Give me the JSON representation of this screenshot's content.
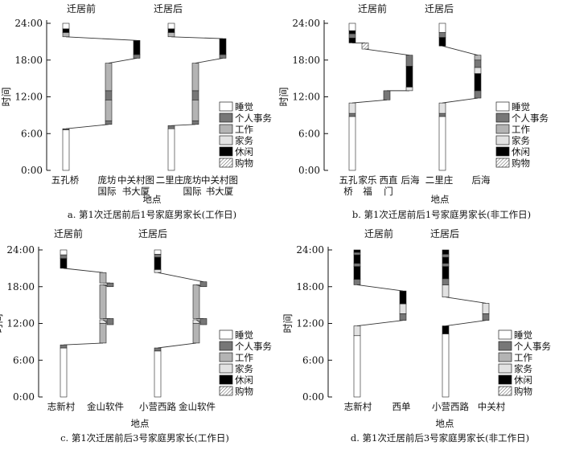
{
  "activity_colors": {
    "sleep": "#ffffff",
    "personal": "#777777",
    "work": "#b4b4b4",
    "housework": "#e2e2e2",
    "leisure": "#000000",
    "shopping": "hatch"
  },
  "chart_data": [
    {
      "type": "bar",
      "caption": "a. 第1次迁居前后1号家庭男家长(工作日)",
      "xlabel": "地点",
      "ylabel": "时间",
      "yticks": [
        "0:00",
        "6:00",
        "12:00",
        "18:00",
        "24:00"
      ],
      "ylim": [
        0,
        24
      ],
      "period_labels": [
        "迁居前",
        "迁居后"
      ],
      "legend": [
        "睡觉",
        "个人事务",
        "工作",
        "家务",
        "休闲",
        "购物"
      ],
      "categories": [
        [
          "五孔桥"
        ],
        [
          "庞坊",
          "国际"
        ],
        [
          "中关村图",
          "书大厦"
        ],
        [
          "二里庄"
        ],
        [
          "庞坊",
          "国际"
        ],
        [
          "中关村图",
          "书大厦"
        ]
      ],
      "periods": [
        {
          "name": "迁居前",
          "stays": [
            {
              "place": 0,
              "segments": [
                {
                  "activity": "sleep",
                  "start": 0,
                  "end": 6.6
                },
                {
                  "activity": "personal",
                  "start": 6.6,
                  "end": 6.8
                }
              ]
            },
            {
              "place": 1,
              "segments": [
                {
                  "activity": "personal",
                  "start": 7.5,
                  "end": 8.1
                },
                {
                  "activity": "work",
                  "start": 8.1,
                  "end": 11.5
                },
                {
                  "activity": "personal",
                  "start": 11.5,
                  "end": 13.0
                },
                {
                  "activity": "work",
                  "start": 13.0,
                  "end": 17.5
                }
              ]
            },
            {
              "place": 2,
              "segments": [
                {
                  "activity": "personal",
                  "start": 18.3,
                  "end": 18.9
                },
                {
                  "activity": "leisure",
                  "start": 18.9,
                  "end": 21.2
                }
              ]
            },
            {
              "place": 0,
              "segments": [
                {
                  "activity": "work",
                  "start": 21.8,
                  "end": 22.5
                },
                {
                  "activity": "leisure",
                  "start": 22.5,
                  "end": 23.1
                },
                {
                  "activity": "sleep",
                  "start": 23.1,
                  "end": 24
                }
              ]
            }
          ]
        },
        {
          "name": "迁居后",
          "stays": [
            {
              "place": 3,
              "segments": [
                {
                  "activity": "sleep",
                  "start": 0,
                  "end": 6.8
                },
                {
                  "activity": "personal",
                  "start": 6.8,
                  "end": 7.3
                }
              ]
            },
            {
              "place": 4,
              "segments": [
                {
                  "activity": "personal",
                  "start": 7.5,
                  "end": 8.1
                },
                {
                  "activity": "work",
                  "start": 8.1,
                  "end": 11.5
                },
                {
                  "activity": "personal",
                  "start": 11.5,
                  "end": 13.0
                },
                {
                  "activity": "work",
                  "start": 13.0,
                  "end": 17.5
                }
              ]
            },
            {
              "place": 5,
              "segments": [
                {
                  "activity": "personal",
                  "start": 18.3,
                  "end": 18.9
                },
                {
                  "activity": "leisure",
                  "start": 18.9,
                  "end": 21.5
                }
              ]
            },
            {
              "place": 3,
              "segments": [
                {
                  "activity": "work",
                  "start": 21.8,
                  "end": 22.5
                },
                {
                  "activity": "leisure",
                  "start": 22.5,
                  "end": 23.1
                },
                {
                  "activity": "sleep",
                  "start": 23.1,
                  "end": 24
                }
              ]
            }
          ]
        }
      ]
    },
    {
      "type": "bar",
      "caption": "b. 第1次迁居前后1号家庭男家长(非工作日)",
      "xlabel": "地点",
      "ylabel": "时间",
      "yticks": [
        "0:00",
        "6:00",
        "12:00",
        "18:00",
        "24:00"
      ],
      "ylim": [
        0,
        24
      ],
      "period_labels": [
        "迁居前",
        "迁居后"
      ],
      "legend": [
        "睡觉",
        "个人事务",
        "工作",
        "家务",
        "休闲",
        "购物"
      ],
      "categories": [
        [
          "五孔",
          "桥"
        ],
        [
          "家乐",
          "福"
        ],
        [
          "西直",
          "门"
        ],
        [
          "后海"
        ],
        [
          "二里庄"
        ],
        [
          "后海"
        ]
      ],
      "periods": [
        {
          "name": "迁居前",
          "stays": [
            {
              "place": 0,
              "segments": [
                {
                  "activity": "sleep",
                  "start": 0,
                  "end": 8.8
                },
                {
                  "activity": "personal",
                  "start": 8.8,
                  "end": 9.3
                },
                {
                  "activity": "housework",
                  "start": 9.3,
                  "end": 11.0
                }
              ]
            },
            {
              "place": 2,
              "segments": [
                {
                  "activity": "personal",
                  "start": 11.5,
                  "end": 13.0
                }
              ]
            },
            {
              "place": 3,
              "segments": [
                {
                  "activity": "housework",
                  "start": 13.0,
                  "end": 13.6
                },
                {
                  "activity": "leisure",
                  "start": 13.6,
                  "end": 17.0
                },
                {
                  "activity": "personal",
                  "start": 17.0,
                  "end": 18.8
                }
              ]
            },
            {
              "place": 1,
              "segments": [
                {
                  "activity": "shopping",
                  "start": 19.8,
                  "end": 20.8
                }
              ]
            },
            {
              "place": 0,
              "segments": [
                {
                  "activity": "leisure",
                  "start": 20.8,
                  "end": 21.6
                },
                {
                  "activity": "personal",
                  "start": 21.6,
                  "end": 22.3
                },
                {
                  "activity": "leisure",
                  "start": 22.3,
                  "end": 22.8
                },
                {
                  "activity": "sleep",
                  "start": 22.8,
                  "end": 24
                }
              ]
            }
          ]
        },
        {
          "name": "迁居后",
          "stays": [
            {
              "place": 4,
              "segments": [
                {
                  "activity": "sleep",
                  "start": 0,
                  "end": 8.8
                },
                {
                  "activity": "personal",
                  "start": 8.8,
                  "end": 9.3
                },
                {
                  "activity": "housework",
                  "start": 9.3,
                  "end": 11.0
                }
              ]
            },
            {
              "place": 5,
              "segments": [
                {
                  "activity": "personal",
                  "start": 11.8,
                  "end": 13.0
                },
                {
                  "activity": "leisure",
                  "start": 13.0,
                  "end": 15.8
                },
                {
                  "activity": "housework",
                  "start": 15.8,
                  "end": 16.8
                },
                {
                  "activity": "personal",
                  "start": 16.8,
                  "end": 18.0
                },
                {
                  "activity": "work",
                  "start": 18.0,
                  "end": 18.8
                }
              ]
            },
            {
              "place": 4,
              "segments": [
                {
                  "activity": "leisure",
                  "start": 20.3,
                  "end": 21.7
                },
                {
                  "activity": "personal",
                  "start": 21.7,
                  "end": 22.5
                },
                {
                  "activity": "sleep",
                  "start": 22.5,
                  "end": 24
                }
              ]
            }
          ]
        }
      ]
    },
    {
      "type": "bar",
      "caption": "c. 第1次迁居前后3号家庭男家长(工作日)",
      "xlabel": "地点",
      "ylabel": "时间",
      "yticks": [
        "0:00",
        "6:00",
        "12:00",
        "18:00",
        "24:00"
      ],
      "ylim": [
        0,
        24
      ],
      "period_labels": [
        "迁居前",
        "迁居后"
      ],
      "legend": [
        "睡觉",
        "个人事务",
        "工作",
        "家务",
        "休闲",
        "购物"
      ],
      "categories": [
        [
          "志新村"
        ],
        [
          "金山软件"
        ],
        [
          "小营西路"
        ],
        [
          "金山软件"
        ]
      ],
      "periods": [
        {
          "name": "迁居前",
          "stays": [
            {
              "place": 0,
              "segments": [
                {
                  "activity": "sleep",
                  "start": 0,
                  "end": 8.0
                },
                {
                  "activity": "personal",
                  "start": 8.0,
                  "end": 8.5
                }
              ]
            },
            {
              "place": 1,
              "segments": [
                {
                  "activity": "work",
                  "start": 8.8,
                  "end": 12.0
                },
                {
                  "activity": "housework",
                  "start": 12.0,
                  "end": 12.6
                }
              ]
            },
            {
              "place": 1,
              "offset": 1,
              "segments": [
                {
                  "activity": "personal",
                  "start": 11.8,
                  "end": 12.8
                }
              ]
            },
            {
              "place": 1,
              "segments": [
                {
                  "activity": "work",
                  "start": 12.8,
                  "end": 18.3
                }
              ]
            },
            {
              "place": 1,
              "offset": 1,
              "segments": [
                {
                  "activity": "personal",
                  "start": 18.0,
                  "end": 18.6
                }
              ]
            },
            {
              "place": 1,
              "segments": [
                {
                  "activity": "work",
                  "start": 18.6,
                  "end": 20.3
                }
              ]
            },
            {
              "place": 0,
              "segments": [
                {
                  "activity": "leisure",
                  "start": 21.0,
                  "end": 22.6
                },
                {
                  "activity": "personal",
                  "start": 22.6,
                  "end": 23.2
                },
                {
                  "activity": "sleep",
                  "start": 23.2,
                  "end": 24
                }
              ]
            }
          ]
        },
        {
          "name": "迁居后",
          "stays": [
            {
              "place": 2,
              "segments": [
                {
                  "activity": "sleep",
                  "start": 0,
                  "end": 7.5
                },
                {
                  "activity": "personal",
                  "start": 7.5,
                  "end": 8.0
                }
              ]
            },
            {
              "place": 3,
              "segments": [
                {
                  "activity": "work",
                  "start": 8.8,
                  "end": 12.0
                },
                {
                  "activity": "housework",
                  "start": 12.0,
                  "end": 12.6
                }
              ]
            },
            {
              "place": 3,
              "offset": 1,
              "segments": [
                {
                  "activity": "personal",
                  "start": 11.8,
                  "end": 12.8
                }
              ]
            },
            {
              "place": 3,
              "segments": [
                {
                  "activity": "work",
                  "start": 12.8,
                  "end": 18.3
                }
              ]
            },
            {
              "place": 3,
              "offset": 1,
              "segments": [
                {
                  "activity": "personal",
                  "start": 18.0,
                  "end": 18.8
                }
              ]
            },
            {
              "place": 2,
              "segments": [
                {
                  "activity": "housework",
                  "start": 20.3,
                  "end": 20.8
                },
                {
                  "activity": "leisure",
                  "start": 20.8,
                  "end": 22.8
                },
                {
                  "activity": "personal",
                  "start": 22.8,
                  "end": 23.3
                },
                {
                  "activity": "sleep",
                  "start": 23.3,
                  "end": 24
                }
              ]
            }
          ]
        }
      ]
    },
    {
      "type": "bar",
      "caption": "d. 第1次迁居前后3号家庭男家长(非工作日)",
      "xlabel": "地点",
      "ylabel": "时间",
      "yticks": [
        "0:00",
        "6:00",
        "12:00",
        "18:00",
        "24:00"
      ],
      "ylim": [
        0,
        24
      ],
      "period_labels": [
        "迁居前",
        "迁居后"
      ],
      "legend": [
        "睡觉",
        "个人事务",
        "工作",
        "家务",
        "休闲",
        "购物"
      ],
      "categories": [
        [
          "志新村"
        ],
        [
          "西单"
        ],
        [
          "小营西路"
        ],
        [
          "中关村"
        ]
      ],
      "periods": [
        {
          "name": "迁居前",
          "stays": [
            {
              "place": 0,
              "segments": [
                {
                  "activity": "sleep",
                  "start": 0,
                  "end": 10.0
                },
                {
                  "activity": "housework",
                  "start": 10.0,
                  "end": 11.6
                }
              ]
            },
            {
              "place": 1,
              "segments": [
                {
                  "activity": "personal",
                  "start": 12.5,
                  "end": 13.6
                },
                {
                  "activity": "housework",
                  "start": 13.6,
                  "end": 15.2
                },
                {
                  "activity": "leisure",
                  "start": 15.2,
                  "end": 17.3
                }
              ]
            },
            {
              "place": 0,
              "segments": [
                {
                  "activity": "personal",
                  "start": 18.3,
                  "end": 19.2
                },
                {
                  "activity": "leisure",
                  "start": 19.2,
                  "end": 21.3
                },
                {
                  "activity": "personal",
                  "start": 21.3,
                  "end": 21.8
                },
                {
                  "activity": "leisure",
                  "start": 21.8,
                  "end": 23.2
                },
                {
                  "activity": "personal",
                  "start": 23.2,
                  "end": 23.6
                },
                {
                  "activity": "leisure",
                  "start": 23.6,
                  "end": 24
                }
              ]
            }
          ]
        },
        {
          "name": "迁居后",
          "stays": [
            {
              "place": 2,
              "segments": [
                {
                  "activity": "sleep",
                  "start": 0,
                  "end": 10.3
                },
                {
                  "activity": "leisure",
                  "start": 10.3,
                  "end": 11.6
                }
              ]
            },
            {
              "place": 3,
              "segments": [
                {
                  "activity": "personal",
                  "start": 12.5,
                  "end": 13.6
                },
                {
                  "activity": "housework",
                  "start": 13.6,
                  "end": 15.3
                }
              ]
            },
            {
              "place": 2,
              "segments": [
                {
                  "activity": "housework",
                  "start": 16.3,
                  "end": 18.3
                },
                {
                  "activity": "personal",
                  "start": 18.3,
                  "end": 19.3
                },
                {
                  "activity": "leisure",
                  "start": 19.3,
                  "end": 21.3
                },
                {
                  "activity": "personal",
                  "start": 21.3,
                  "end": 21.8
                },
                {
                  "activity": "leisure",
                  "start": 21.8,
                  "end": 22.8
                },
                {
                  "activity": "personal",
                  "start": 22.8,
                  "end": 23.3
                },
                {
                  "activity": "leisure",
                  "start": 23.3,
                  "end": 24
                }
              ]
            }
          ]
        }
      ]
    }
  ]
}
